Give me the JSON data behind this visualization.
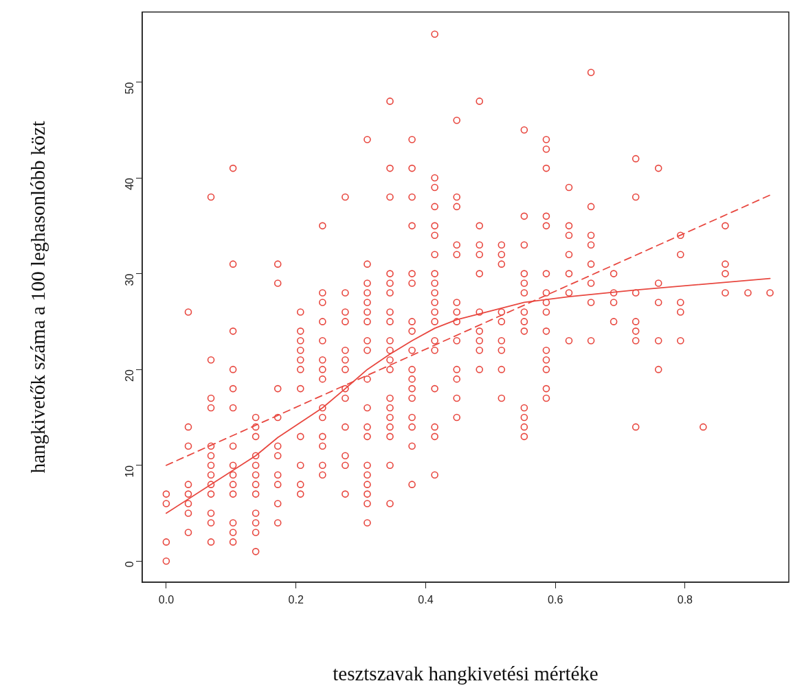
{
  "chart_data": {
    "type": "scatter",
    "xlabel": "tesztszavak hangkivetési mértéke",
    "ylabel": "hangkivetők száma a 100 leghasonlóbb közt",
    "xlim": [
      -0.037,
      0.96
    ],
    "ylim": [
      -2.2,
      57.3
    ],
    "xticks": [
      {
        "value": 0,
        "label": "0.0"
      },
      0.2,
      0.4,
      0.6,
      0.8
    ],
    "yticks": [
      0,
      10,
      20,
      30,
      40,
      50
    ],
    "grid": false,
    "legend": false,
    "marker": "circle",
    "series": [
      {
        "color": "#e8473f",
        "x": [
          0,
          0,
          0,
          0,
          0.034,
          0.034,
          0.034,
          0.034,
          0.034,
          0.034,
          0.034,
          0.034,
          0.069,
          0.069,
          0.069,
          0.069,
          0.069,
          0.069,
          0.069,
          0.069,
          0.069,
          0.069,
          0.069,
          0.069,
          0.069,
          0.103,
          0.103,
          0.103,
          0.103,
          0.103,
          0.103,
          0.103,
          0.103,
          0.103,
          0.103,
          0.103,
          0.103,
          0.103,
          0.103,
          0.138,
          0.138,
          0.138,
          0.138,
          0.138,
          0.138,
          0.138,
          0.138,
          0.138,
          0.138,
          0.138,
          0.138,
          0.172,
          0.172,
          0.172,
          0.172,
          0.172,
          0.172,
          0.172,
          0.172,
          0.172,
          0.172,
          0.207,
          0.207,
          0.207,
          0.207,
          0.207,
          0.207,
          0.207,
          0.207,
          0.207,
          0.207,
          0.207,
          0.241,
          0.241,
          0.241,
          0.241,
          0.241,
          0.241,
          0.241,
          0.241,
          0.241,
          0.241,
          0.241,
          0.241,
          0.241,
          0.241,
          0.276,
          0.276,
          0.276,
          0.276,
          0.276,
          0.276,
          0.276,
          0.276,
          0.276,
          0.276,
          0.276,
          0.276,
          0.276,
          0.31,
          0.31,
          0.31,
          0.31,
          0.31,
          0.31,
          0.31,
          0.31,
          0.31,
          0.31,
          0.31,
          0.31,
          0.31,
          0.31,
          0.31,
          0.31,
          0.31,
          0.31,
          0.31,
          0.345,
          0.345,
          0.345,
          0.345,
          0.345,
          0.345,
          0.345,
          0.345,
          0.345,
          0.345,
          0.345,
          0.345,
          0.345,
          0.345,
          0.345,
          0.345,
          0.345,
          0.345,
          0.345,
          0.379,
          0.379,
          0.379,
          0.379,
          0.379,
          0.379,
          0.379,
          0.379,
          0.379,
          0.379,
          0.379,
          0.379,
          0.379,
          0.379,
          0.379,
          0.379,
          0.379,
          0.414,
          0.414,
          0.414,
          0.414,
          0.414,
          0.414,
          0.414,
          0.414,
          0.414,
          0.414,
          0.414,
          0.414,
          0.414,
          0.414,
          0.414,
          0.414,
          0.414,
          0.414,
          0.414,
          0.448,
          0.448,
          0.448,
          0.448,
          0.448,
          0.448,
          0.448,
          0.448,
          0.448,
          0.448,
          0.448,
          0.448,
          0.448,
          0.483,
          0.483,
          0.483,
          0.483,
          0.483,
          0.483,
          0.483,
          0.483,
          0.483,
          0.483,
          0.517,
          0.517,
          0.517,
          0.517,
          0.517,
          0.517,
          0.517,
          0.517,
          0.517,
          0.552,
          0.552,
          0.552,
          0.552,
          0.552,
          0.552,
          0.552,
          0.552,
          0.552,
          0.552,
          0.552,
          0.552,
          0.552,
          0.586,
          0.586,
          0.586,
          0.586,
          0.586,
          0.586,
          0.586,
          0.586,
          0.586,
          0.586,
          0.586,
          0.586,
          0.586,
          0.586,
          0.586,
          0.621,
          0.621,
          0.621,
          0.621,
          0.621,
          0.621,
          0.621,
          0.655,
          0.655,
          0.655,
          0.655,
          0.655,
          0.655,
          0.655,
          0.655,
          0.69,
          0.69,
          0.69,
          0.69,
          0.724,
          0.724,
          0.724,
          0.724,
          0.724,
          0.724,
          0.724,
          0.759,
          0.759,
          0.759,
          0.759,
          0.759,
          0.793,
          0.793,
          0.793,
          0.793,
          0.793,
          0.828,
          0.862,
          0.862,
          0.862,
          0.862,
          0.897,
          0.931
        ],
        "values": [
          7,
          6,
          2,
          0,
          26,
          14,
          12,
          8,
          7,
          6,
          5,
          3,
          38,
          21,
          17,
          16,
          12,
          11,
          10,
          9,
          8,
          7,
          5,
          4,
          2,
          41,
          31,
          24,
          20,
          18,
          16,
          12,
          10,
          9,
          8,
          7,
          4,
          3,
          2,
          15,
          14,
          13,
          11,
          10,
          9,
          8,
          7,
          5,
          4,
          3,
          1,
          31,
          29,
          18,
          15,
          12,
          11,
          9,
          8,
          6,
          4,
          26,
          24,
          23,
          22,
          21,
          20,
          18,
          13,
          10,
          8,
          7,
          35,
          28,
          27,
          25,
          23,
          21,
          20,
          19,
          16,
          15,
          13,
          12,
          10,
          9,
          38,
          28,
          26,
          25,
          22,
          21,
          20,
          18,
          17,
          14,
          11,
          10,
          7,
          44,
          31,
          29,
          28,
          27,
          26,
          25,
          23,
          22,
          19,
          16,
          14,
          13,
          10,
          9,
          8,
          7,
          6,
          4,
          48,
          41,
          38,
          30,
          29,
          28,
          26,
          25,
          23,
          22,
          21,
          20,
          17,
          16,
          15,
          14,
          13,
          10,
          6,
          44,
          41,
          38,
          35,
          30,
          29,
          25,
          24,
          22,
          20,
          19,
          18,
          17,
          15,
          14,
          12,
          8,
          55,
          40,
          39,
          37,
          35,
          34,
          32,
          30,
          29,
          28,
          27,
          26,
          25,
          23,
          22,
          18,
          14,
          13,
          9,
          46,
          38,
          37,
          33,
          32,
          27,
          26,
          25,
          23,
          20,
          19,
          17,
          15,
          48,
          35,
          33,
          32,
          30,
          26,
          24,
          23,
          22,
          20,
          33,
          32,
          31,
          26,
          25,
          23,
          22,
          20,
          17,
          45,
          36,
          33,
          30,
          29,
          28,
          26,
          25,
          24,
          16,
          15,
          14,
          13,
          44,
          43,
          41,
          36,
          35,
          30,
          28,
          27,
          26,
          24,
          22,
          21,
          20,
          18,
          17,
          39,
          35,
          34,
          32,
          30,
          28,
          23,
          51,
          37,
          34,
          33,
          31,
          29,
          27,
          23,
          30,
          28,
          27,
          25,
          42,
          38,
          28,
          25,
          24,
          23,
          14,
          41,
          29,
          27,
          23,
          20,
          34,
          32,
          27,
          26,
          23,
          14,
          35,
          31,
          30,
          28,
          28,
          28
        ]
      },
      {
        "type": "line",
        "color": "#e8473f",
        "line_style": "dashed",
        "marker": "none",
        "x": [
          0,
          0.931
        ],
        "values": [
          10,
          38.2
        ]
      },
      {
        "type": "line",
        "color": "#e8473f",
        "line_style": "solid",
        "marker": "none",
        "x": [
          0,
          0.138,
          0.172,
          0.241,
          0.276,
          0.31,
          0.345,
          0.379,
          0.414,
          0.448,
          0.517,
          0.552,
          0.621,
          0.724,
          0.931
        ],
        "values": [
          5,
          11,
          12.9,
          16,
          18,
          20,
          21.6,
          23,
          24.3,
          25.2,
          26.4,
          27,
          27.6,
          28.3,
          29.5
        ]
      }
    ]
  }
}
